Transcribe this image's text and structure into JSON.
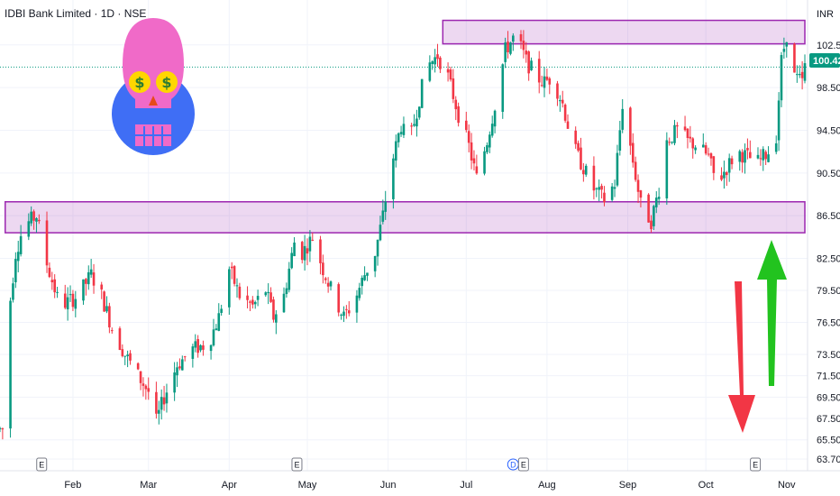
{
  "header": {
    "title": "IDBI Bank Limited · 1D · NSE"
  },
  "axis": {
    "currency": "INR"
  },
  "colors": {
    "up": "#089981",
    "down": "#f23645",
    "zone_fill": "rgba(156,39,176,0.18)",
    "zone_stroke": "#9c27b0",
    "current_price": "#089981",
    "grid": "#f0f3fa"
  },
  "current_price": {
    "value": 100.42,
    "label": "100.42"
  },
  "events": [
    {
      "kind": "E",
      "date": "2024-01-20"
    },
    {
      "kind": "E",
      "date": "2024-04-27"
    },
    {
      "kind": "D",
      "date": "2024-07-19"
    },
    {
      "kind": "E",
      "date": "2024-07-23"
    },
    {
      "kind": "E",
      "date": "2024-10-20"
    }
  ],
  "annotations": {
    "skull": {
      "icon": "skull-dollar-eyes-icon",
      "colors": {
        "circle": "#3f6ef5",
        "skull": "#f06ac8",
        "eyes": "#ffd600",
        "dollar": "#2e7d32",
        "nose": "#e64a19"
      }
    },
    "arrow_down": {
      "icon": "red-down-arrow-icon",
      "color": "#f23645"
    },
    "arrow_up": {
      "icon": "green-up-arrow-icon",
      "color": "#22c31f"
    }
  },
  "chart_data": {
    "type": "candlestick",
    "title": "IDBI Bank Limited · 1D · NSE",
    "y_unit": "INR",
    "ylim": [
      63.7,
      106.2
    ],
    "y_ticks": [
      102.5,
      98.5,
      94.5,
      90.5,
      86.5,
      82.5,
      79.5,
      76.5,
      73.5,
      71.5,
      69.5,
      67.5,
      65.5,
      63.7
    ],
    "y_tick_labels": [
      "102.50",
      "98.50",
      "94.50",
      "90.50",
      "86.50",
      "82.50",
      "79.50",
      "76.50",
      "73.50",
      "71.50",
      "69.50",
      "67.50",
      "65.50",
      "63.70"
    ],
    "x_range": [
      "2024-01-04",
      "2024-11-08"
    ],
    "x_ticks": [
      {
        "label": "Feb",
        "date": "2024-02-01"
      },
      {
        "label": "Mar",
        "date": "2024-03-01"
      },
      {
        "label": "Apr",
        "date": "2024-04-01"
      },
      {
        "label": "May",
        "date": "2024-05-01"
      },
      {
        "label": "Jun",
        "date": "2024-06-01"
      },
      {
        "label": "Jul",
        "date": "2024-07-01"
      },
      {
        "label": "Aug",
        "date": "2024-08-01"
      },
      {
        "label": "Sep",
        "date": "2024-09-01"
      },
      {
        "label": "Oct",
        "date": "2024-10-01"
      },
      {
        "label": "Nov",
        "date": "2024-11-01"
      }
    ],
    "zones": [
      {
        "name": "resistance",
        "low": 102.6,
        "high": 104.8,
        "from": "2024-06-22",
        "to": "2024-11-08"
      },
      {
        "name": "support",
        "low": 84.9,
        "high": 87.8,
        "from": "2024-01-06",
        "to": "2024-11-08"
      }
    ],
    "price_anchors": [
      [
        "2024-01-05",
        66.5
      ],
      [
        "2024-01-07",
        76.5
      ],
      [
        "2024-01-10",
        83.0
      ],
      [
        "2024-01-13",
        85.5
      ],
      [
        "2024-01-18",
        86.5
      ],
      [
        "2024-01-22",
        82.0
      ],
      [
        "2024-01-27",
        78.0
      ],
      [
        "2024-02-03",
        79.0
      ],
      [
        "2024-02-08",
        81.0
      ],
      [
        "2024-02-12",
        79.0
      ],
      [
        "2024-02-16",
        76.0
      ],
      [
        "2024-02-21",
        73.5
      ],
      [
        "2024-02-26",
        71.5
      ],
      [
        "2024-03-01",
        70.0
      ],
      [
        "2024-03-04",
        67.2
      ],
      [
        "2024-03-07",
        69.5
      ],
      [
        "2024-03-12",
        72.5
      ],
      [
        "2024-03-18",
        74.0
      ],
      [
        "2024-03-24",
        74.5
      ],
      [
        "2024-03-28",
        77.0
      ],
      [
        "2024-04-01",
        81.5
      ],
      [
        "2024-04-05",
        79.0
      ],
      [
        "2024-04-10",
        78.0
      ],
      [
        "2024-04-15",
        79.5
      ],
      [
        "2024-04-18",
        77.0
      ],
      [
        "2024-04-22",
        79.0
      ],
      [
        "2024-04-26",
        84.0
      ],
      [
        "2024-04-29",
        83.0
      ],
      [
        "2024-05-03",
        84.5
      ],
      [
        "2024-05-07",
        81.5
      ],
      [
        "2024-05-11",
        79.0
      ],
      [
        "2024-05-15",
        77.0
      ],
      [
        "2024-05-19",
        78.5
      ],
      [
        "2024-05-23",
        81.0
      ],
      [
        "2024-05-27",
        83.0
      ],
      [
        "2024-05-30",
        86.5
      ],
      [
        "2024-06-02",
        91.0
      ],
      [
        "2024-06-06",
        95.0
      ],
      [
        "2024-06-09",
        93.0
      ],
      [
        "2024-06-13",
        97.5
      ],
      [
        "2024-06-16",
        100.5
      ],
      [
        "2024-06-20",
        101.5
      ],
      [
        "2024-06-24",
        99.5
      ],
      [
        "2024-06-28",
        96.0
      ],
      [
        "2024-07-02",
        93.0
      ],
      [
        "2024-07-05",
        90.0
      ],
      [
        "2024-07-09",
        93.5
      ],
      [
        "2024-07-13",
        98.0
      ],
      [
        "2024-07-16",
        102.0
      ],
      [
        "2024-07-20",
        103.5
      ],
      [
        "2024-07-24",
        101.0
      ],
      [
        "2024-07-28",
        99.5
      ],
      [
        "2024-07-31",
        99.0
      ],
      [
        "2024-08-03",
        99.5
      ],
      [
        "2024-08-07",
        97.0
      ],
      [
        "2024-08-11",
        93.0
      ],
      [
        "2024-08-15",
        91.0
      ],
      [
        "2024-08-19",
        89.0
      ],
      [
        "2024-08-23",
        88.0
      ],
      [
        "2024-08-27",
        89.5
      ],
      [
        "2024-08-30",
        97.0
      ],
      [
        "2024-09-02",
        93.0
      ],
      [
        "2024-09-06",
        87.5
      ],
      [
        "2024-09-10",
        86.0
      ],
      [
        "2024-09-13",
        89.0
      ],
      [
        "2024-09-16",
        93.5
      ],
      [
        "2024-09-20",
        94.5
      ],
      [
        "2024-09-24",
        93.5
      ],
      [
        "2024-09-28",
        93.0
      ],
      [
        "2024-10-02",
        92.0
      ],
      [
        "2024-10-05",
        89.5
      ],
      [
        "2024-10-09",
        91.0
      ],
      [
        "2024-10-13",
        92.5
      ],
      [
        "2024-10-17",
        92.0
      ],
      [
        "2024-10-21",
        91.5
      ],
      [
        "2024-10-25",
        92.5
      ],
      [
        "2024-10-28",
        94.0
      ],
      [
        "2024-10-30",
        101.0
      ],
      [
        "2024-11-01",
        103.5
      ],
      [
        "2024-11-04",
        99.5
      ],
      [
        "2024-11-07",
        99.0
      ],
      [
        "2024-11-08",
        100.4
      ]
    ]
  }
}
